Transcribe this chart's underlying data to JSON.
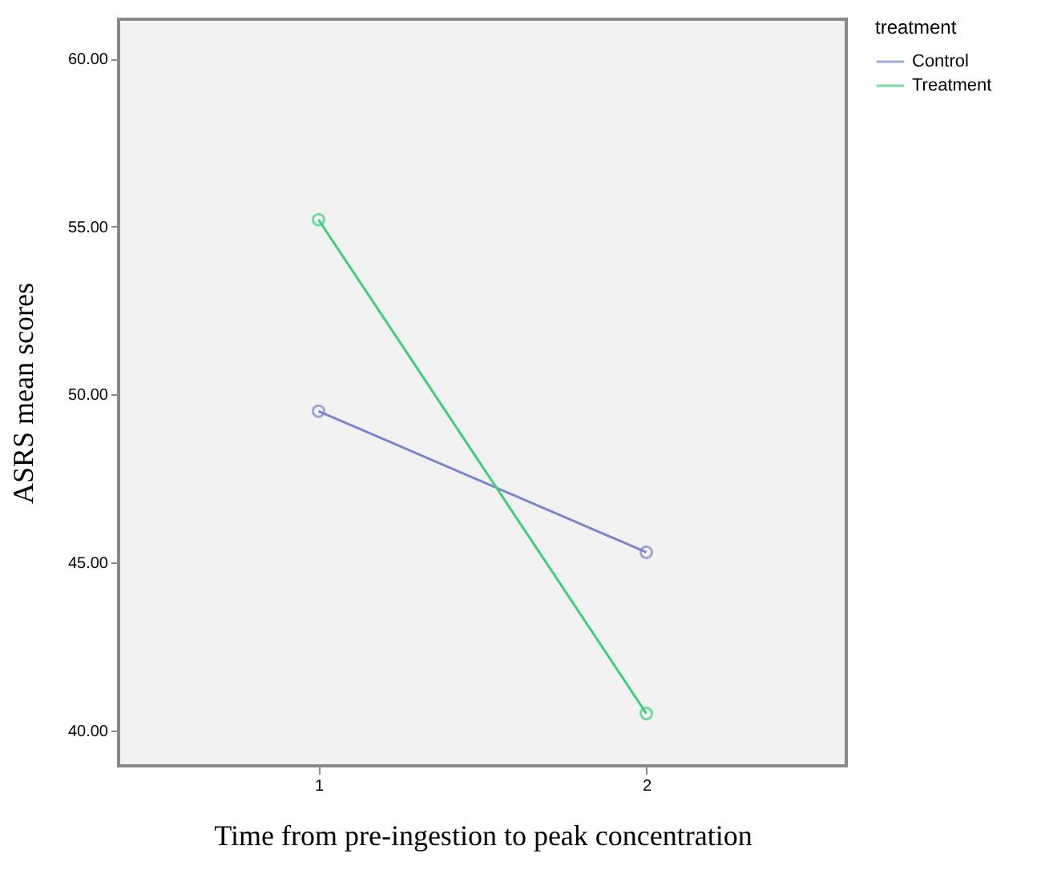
{
  "chart_data": {
    "type": "line",
    "xlabel": "Time from pre-ingestion to peak concentration",
    "ylabel": "ASRS mean scores",
    "legend_title": "treatment",
    "categories": [
      "1",
      "2"
    ],
    "series": [
      {
        "name": "Control",
        "color": "#7b86cc",
        "values": [
          49.5,
          45.3
        ]
      },
      {
        "name": "Treatment",
        "color": "#3ecf78",
        "values": [
          55.2,
          40.5
        ]
      }
    ],
    "ylim": [
      38.94,
      61.17
    ],
    "yticks": [
      {
        "value": 40,
        "label": "40.00"
      },
      {
        "value": 45,
        "label": "45.00"
      },
      {
        "value": 50,
        "label": "50.00"
      },
      {
        "value": 55,
        "label": "55.00"
      },
      {
        "value": 60,
        "label": "60.00"
      }
    ],
    "marker": "circle",
    "grid": false,
    "legend": "top right",
    "line_style": "solid"
  }
}
